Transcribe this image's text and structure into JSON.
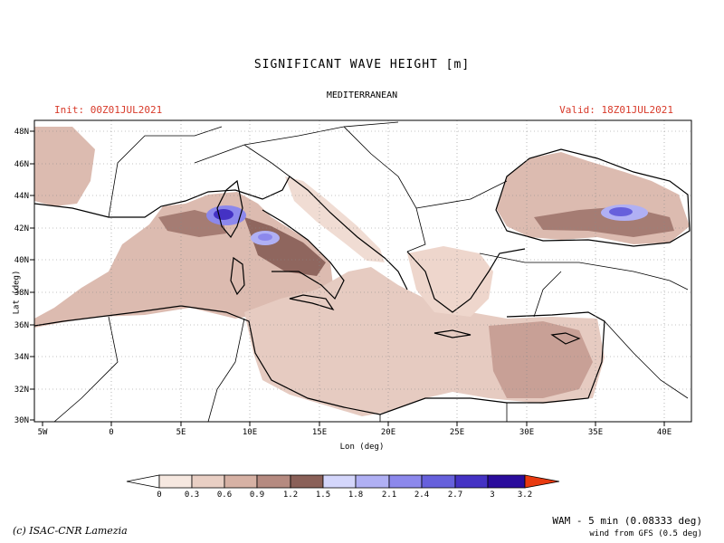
{
  "title": "SIGNIFICANT  WAVE  HEIGHT [m]",
  "subtitle": "MEDITERRANEAN",
  "init_label": "Init: 00Z01JUL2021",
  "valid_label": "Valid: 18Z01JUL2021",
  "x_axis_label": "Lon (deg)",
  "y_axis_label": "Lat (deg)",
  "lon_ticks": [
    "5W",
    "0",
    "5E",
    "10E",
    "15E",
    "20E",
    "25E",
    "30E",
    "35E",
    "40E"
  ],
  "lat_ticks": [
    "48N",
    "46N",
    "44N",
    "42N",
    "40N",
    "38N",
    "36N",
    "34N",
    "32N",
    "30N"
  ],
  "colorbar": {
    "labels": [
      "0",
      "0.3",
      "0.6",
      "0.9",
      "1.2",
      "1.5",
      "1.8",
      "2.1",
      "2.4",
      "2.7",
      "3",
      "3.2"
    ],
    "colors": [
      "#ffffff",
      "#f6e8e0",
      "#e9cfc4",
      "#d6b1a4",
      "#b58a80",
      "#8a6058",
      "#d4d6fb",
      "#b0b0f4",
      "#8c88ec",
      "#6660dc",
      "#4432c4",
      "#2a0c9c",
      "#e83a10"
    ]
  },
  "model_label": "WAM - 5 min (0.08333 deg)",
  "wind_label": "wind from GFS (0.5 deg)",
  "credit": "(c) ISAC-CNR Lamezia",
  "colors": {
    "header_red": "#d83a2a",
    "land": "#ffffff",
    "border": "#000000"
  }
}
